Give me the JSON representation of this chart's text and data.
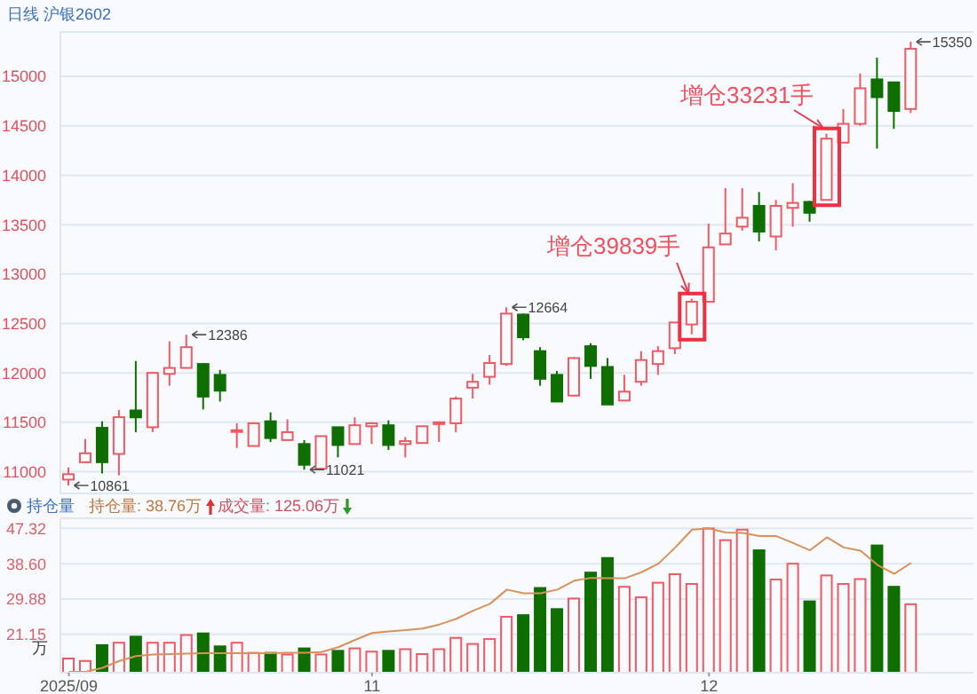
{
  "chart_data": [
    {
      "type": "candlestick",
      "title": "日线 沪银2602",
      "categories": [
        "2025/09",
        null,
        null,
        null,
        null,
        null,
        null,
        null,
        null,
        null,
        null,
        null,
        null,
        null,
        null,
        null,
        null,
        null,
        "11",
        null,
        null,
        null,
        null,
        null,
        null,
        null,
        null,
        null,
        null,
        null,
        null,
        null,
        null,
        null,
        null,
        null,
        null,
        null,
        "12",
        null,
        null,
        null,
        null,
        null,
        null,
        null,
        null,
        null,
        null,
        null,
        null
      ],
      "ohlc": [
        [
          10920,
          11042,
          10861,
          10975
        ],
        [
          11096,
          11330,
          11096,
          11186
        ],
        [
          11444,
          11510,
          10982,
          11096
        ],
        [
          11180,
          11624,
          10964,
          11552
        ],
        [
          11620,
          12120,
          11400,
          11550
        ],
        [
          11450,
          12010,
          11400,
          12000
        ],
        [
          11990,
          12320,
          11870,
          12050
        ],
        [
          12050,
          12386,
          12050,
          12260
        ],
        [
          12090,
          12100,
          11630,
          11760
        ],
        [
          11980,
          12030,
          11710,
          11820
        ],
        [
          11410,
          11490,
          11240,
          11420
        ],
        [
          11260,
          11500,
          11260,
          11490
        ],
        [
          11510,
          11600,
          11300,
          11340
        ],
        [
          11320,
          11530,
          11320,
          11400
        ],
        [
          11280,
          11320,
          11021,
          11070
        ],
        [
          11030,
          11360,
          11030,
          11360
        ],
        [
          11450,
          11450,
          11145,
          11270
        ],
        [
          11280,
          11550,
          11280,
          11470
        ],
        [
          11460,
          11500,
          11280,
          11490
        ],
        [
          11470,
          11520,
          11220,
          11270
        ],
        [
          11280,
          11350,
          11145,
          11310
        ],
        [
          11290,
          11460,
          11290,
          11460
        ],
        [
          11486,
          11510,
          11300,
          11500
        ],
        [
          11490,
          11760,
          11400,
          11740
        ],
        [
          11850,
          11990,
          11740,
          11910
        ],
        [
          11960,
          12180,
          11880,
          12100
        ],
        [
          12090,
          12664,
          12070,
          12600
        ],
        [
          12590,
          12600,
          12330,
          12360
        ],
        [
          12220,
          12260,
          11870,
          11940
        ],
        [
          11980,
          12020,
          11710,
          11710
        ],
        [
          11770,
          12160,
          11770,
          12150
        ],
        [
          12270,
          12300,
          11940,
          12070
        ],
        [
          12060,
          12150,
          11680,
          11680
        ],
        [
          11720,
          11980,
          11720,
          11810
        ],
        [
          11910,
          12220,
          11870,
          12130
        ],
        [
          12090,
          12270,
          11980,
          12220
        ],
        [
          12250,
          12510,
          12190,
          12510
        ],
        [
          12490,
          12750,
          12390,
          12720
        ],
        [
          12720,
          13510,
          12720,
          13270
        ],
        [
          13300,
          13870,
          13300,
          13410
        ],
        [
          13480,
          13870,
          13440,
          13570
        ],
        [
          13690,
          13830,
          13330,
          13430
        ],
        [
          13380,
          13750,
          13240,
          13690
        ],
        [
          13670,
          13920,
          13480,
          13720
        ],
        [
          13730,
          13740,
          13530,
          13620
        ],
        [
          13750,
          14420,
          13750,
          14370
        ],
        [
          14330,
          14670,
          14330,
          14520
        ],
        [
          14520,
          15030,
          14500,
          14880
        ],
        [
          14970,
          15190,
          14270,
          14790
        ],
        [
          14940,
          14940,
          14470,
          14650
        ],
        [
          14670,
          15350,
          14630,
          15280
        ]
      ],
      "colors": [
        "#ee5a64",
        "#ee5a64",
        "#0f6e00",
        "#ee5a64",
        "#0f6e00",
        "#ee5a64",
        "#ee5a64",
        "#ee5a64",
        "#0f6e00",
        "#0f6e00",
        "#ee5a64",
        "#ee5a64",
        "#0f6e00",
        "#ee5a64",
        "#0f6e00",
        "#ee5a64",
        "#0f6e00",
        "#ee5a64",
        "#ee5a64",
        "#0f6e00",
        "#ee5a64",
        "#ee5a64",
        "#ee5a64",
        "#ee5a64",
        "#ee5a64",
        "#ee5a64",
        "#ee5a64",
        "#0f6e00",
        "#0f6e00",
        "#0f6e00",
        "#ee5a64",
        "#0f6e00",
        "#0f6e00",
        "#ee5a64",
        "#ee5a64",
        "#ee5a64",
        "#ee5a64",
        "#ee5a64",
        "#ee5a64",
        "#ee5a64",
        "#ee5a64",
        "#0f6e00",
        "#ee5a64",
        "#ee5a64",
        "#0f6e00",
        "#ee5a64",
        "#ee5a64",
        "#ee5a64",
        "#0f6e00",
        "#0f6e00",
        "#ee5a64"
      ],
      "ylim": [
        10780,
        15450
      ],
      "yticks": [
        11000,
        11500,
        12000,
        12500,
        13000,
        13500,
        14000,
        14500,
        15000
      ],
      "grid": "y",
      "tick_labels": "y",
      "annotations": [
        "10861",
        "12386",
        "11021",
        "12664",
        "15350",
        "增仓39839手",
        "增仓33231手"
      ]
    },
    {
      "type": "bar",
      "title": "持仓量",
      "ylabel": "万",
      "categories": [
        "2025/09",
        null,
        null,
        null,
        null,
        null,
        null,
        null,
        null,
        null,
        null,
        null,
        null,
        null,
        null,
        null,
        null,
        null,
        "11",
        null,
        null,
        null,
        null,
        null,
        null,
        null,
        null,
        null,
        null,
        null,
        null,
        null,
        null,
        null,
        null,
        null,
        null,
        null,
        "12",
        null,
        null,
        null,
        null,
        null,
        null,
        null,
        null,
        null,
        null,
        null,
        null
      ],
      "series": [
        {
          "type": "bar",
          "colors": [
            "#ee5a64",
            "#ee5a64",
            "#0f6e00",
            "#ee5a64",
            "#0f6e00",
            "#ee5a64",
            "#ee5a64",
            "#ee5a64",
            "#0f6e00",
            "#0f6e00",
            "#ee5a64",
            "#ee5a64",
            "#0f6e00",
            "#ee5a64",
            "#0f6e00",
            "#ee5a64",
            "#0f6e00",
            "#ee5a64",
            "#ee5a64",
            "#0f6e00",
            "#ee5a64",
            "#ee5a64",
            "#ee5a64",
            "#ee5a64",
            "#ee5a64",
            "#ee5a64",
            "#ee5a64",
            "#0f6e00",
            "#0f6e00",
            "#0f6e00",
            "#ee5a64",
            "#0f6e00",
            "#0f6e00",
            "#ee5a64",
            "#ee5a64",
            "#ee5a64",
            "#ee5a64",
            "#ee5a64",
            "#ee5a64",
            "#ee5a64",
            "#ee5a64",
            "#0f6e00",
            "#ee5a64",
            "#ee5a64",
            "#0f6e00",
            "#ee5a64",
            "#ee5a64",
            "#ee5a64",
            "#0f6e00",
            "#0f6e00",
            "#ee5a64"
          ],
          "values": [
            15.2,
            14.6,
            18.5,
            19.1,
            20.6,
            19.1,
            19.1,
            21.0,
            21.4,
            18.2,
            19.1,
            16.6,
            16.6,
            16.2,
            17.7,
            16.2,
            17.1,
            17.7,
            16.9,
            17.1,
            17.5,
            16.3,
            17.5,
            20.3,
            18.8,
            20.0,
            25.5,
            25.9,
            32.6,
            27.4,
            30.0,
            36.4,
            40.0,
            32.9,
            30.3,
            33.9,
            36.0,
            33.6,
            47.3,
            44.4,
            47.0,
            41.9,
            34.7,
            38.6,
            29.3,
            35.7,
            33.6,
            34.8,
            43.1,
            32.9,
            28.6
          ]
        },
        {
          "type": "line",
          "color": "#d9915a",
          "values": [
            11.9,
            11.9,
            12.9,
            14.6,
            15.8,
            16.2,
            16.3,
            16.4,
            16.5,
            16.5,
            16.5,
            16.5,
            16.5,
            16.6,
            16.6,
            16.8,
            18.0,
            19.8,
            21.5,
            21.9,
            22.2,
            22.6,
            23.6,
            25.0,
            27.0,
            28.7,
            32.2,
            31.3,
            31.3,
            32.2,
            34.4,
            35.1,
            35.0,
            35.0,
            36.5,
            38.6,
            42.6,
            47.0,
            47.3,
            46.3,
            46.2,
            45.4,
            45.4,
            43.7,
            41.9,
            45.1,
            42.6,
            41.8,
            38.3,
            36.1,
            38.8
          ]
        }
      ],
      "ylim": [
        11.7,
        49.8
      ],
      "yticks": [
        21.15,
        29.88,
        {
          "value": 38.6,
          "label": "38.60"
        },
        47.32
      ],
      "grid": "y",
      "annotations": [
        "持仓量: 38.76万",
        "成交量: 125.06万"
      ]
    }
  ]
}
